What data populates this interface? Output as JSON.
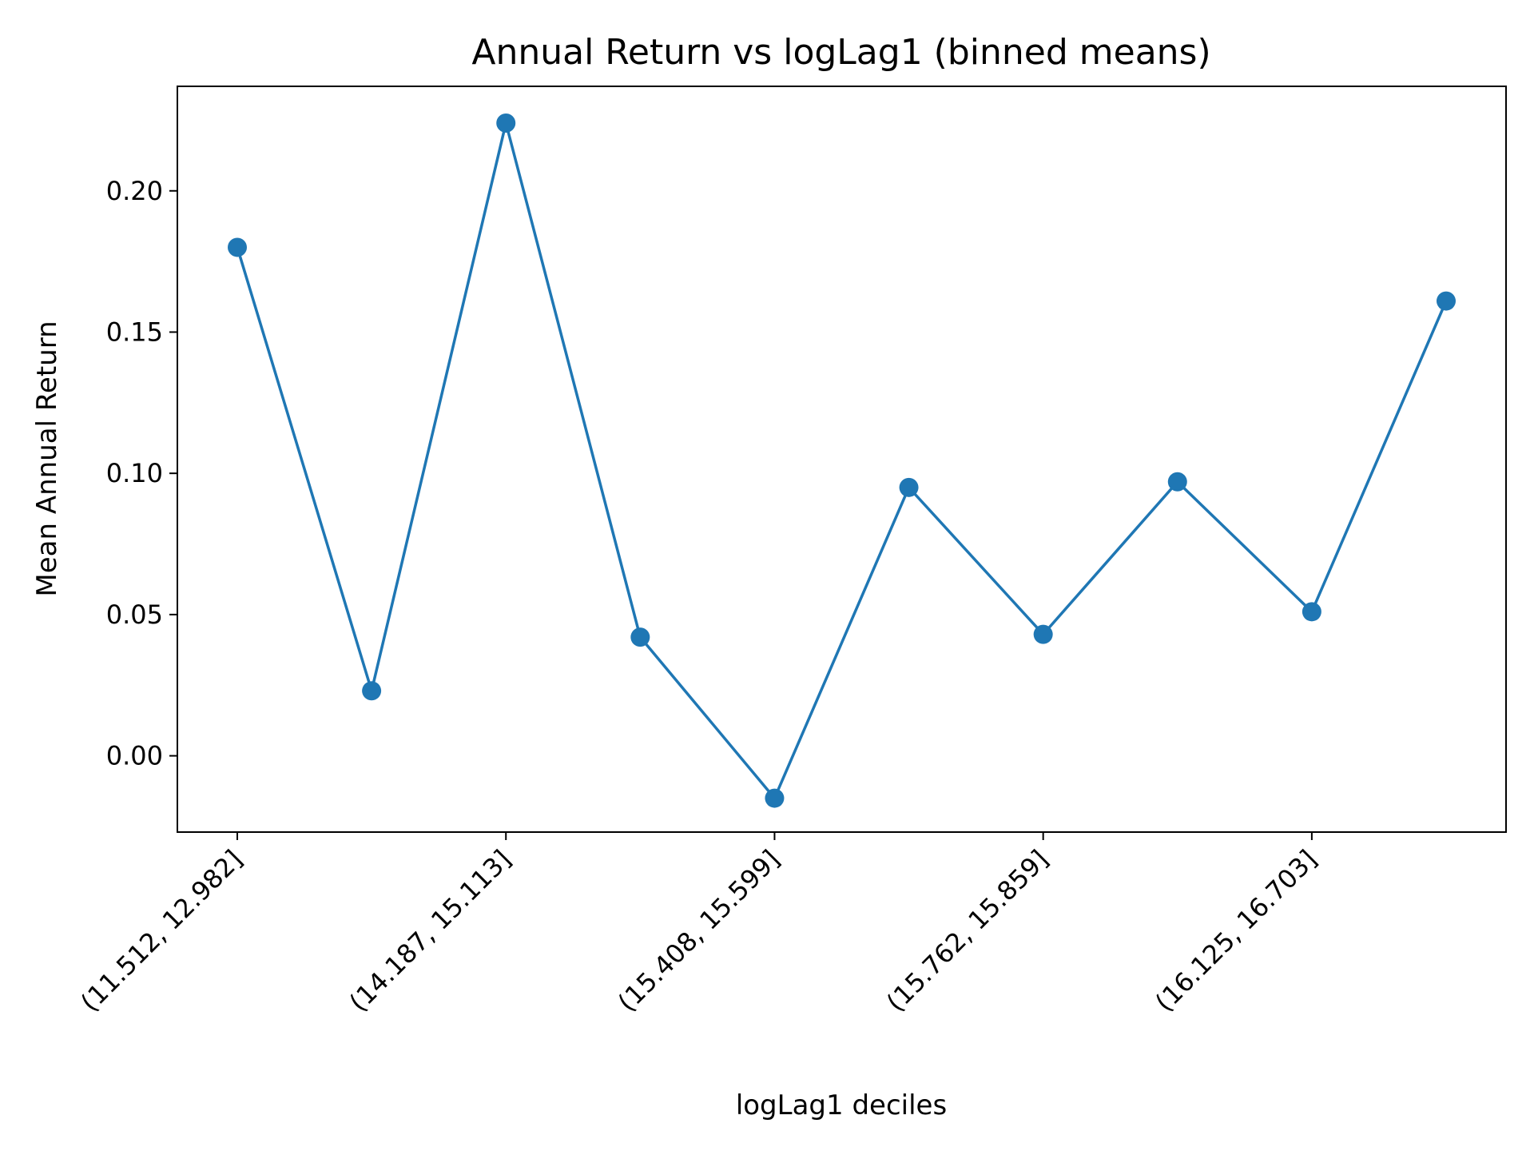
{
  "chart_data": {
    "type": "line",
    "title": "Annual Return vs logLag1 (binned means)",
    "xlabel": "logLag1 deciles",
    "ylabel": "Mean Annual Return",
    "categories": [
      "(11.512, 12.982]",
      "",
      "(14.187, 15.113]",
      "",
      "(15.408, 15.599]",
      "",
      "(15.762, 15.859]",
      "",
      "(16.125, 16.703]",
      ""
    ],
    "x_tick_labels": [
      "(11.512, 12.982]",
      "(14.187, 15.113]",
      "(15.408, 15.599]",
      "(15.762, 15.859]",
      "(16.125, 16.703]"
    ],
    "x_tick_indices": [
      0,
      2,
      4,
      6,
      8
    ],
    "series": [
      {
        "values": [
          0.18,
          0.023,
          0.224,
          0.042,
          -0.015,
          0.095,
          0.043,
          0.097,
          0.051,
          0.161
        ],
        "color": "#1f77b4",
        "marker": "circle"
      }
    ],
    "ylim": [
      -0.027,
      0.237
    ],
    "y_ticks": [
      0.0,
      0.05,
      0.1,
      0.15,
      0.2
    ],
    "y_tick_labels": [
      "0.00",
      "0.05",
      "0.10",
      "0.15",
      "0.20"
    ],
    "grid": false,
    "legend": "none"
  }
}
